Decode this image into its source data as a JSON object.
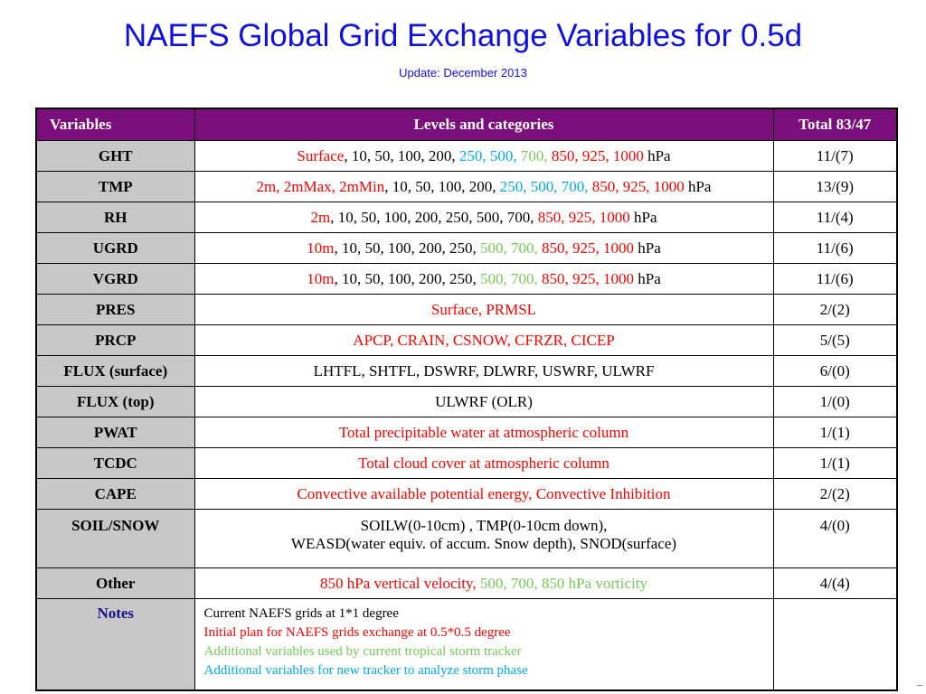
{
  "title": "NAEFS Global Grid Exchange Variables for 0.5d",
  "subtitle": "Update: December 2013",
  "headers": {
    "variables": "Variables",
    "levels": "Levels and categories",
    "total": "Total  83/47"
  },
  "rows": [
    {
      "var": "GHT",
      "segments": [
        {
          "t": "Surface",
          "c": "red"
        },
        {
          "t": ", 10, 50, 100, 200, ",
          "c": "blk"
        },
        {
          "t": "250, 500, ",
          "c": "cyan"
        },
        {
          "t": "700, ",
          "c": "green"
        },
        {
          "t": "850, 925, 1000",
          "c": "red"
        },
        {
          "t": " hPa",
          "c": "blk"
        }
      ],
      "total": "11/(7)"
    },
    {
      "var": "TMP",
      "segments": [
        {
          "t": "2m, 2mMax, 2mMin",
          "c": "red"
        },
        {
          "t": ", 10, 50, 100, 200, ",
          "c": "blk"
        },
        {
          "t": "250, 500, 700, ",
          "c": "cyan"
        },
        {
          "t": "850, 925, 1000",
          "c": "red"
        },
        {
          "t": " hPa",
          "c": "blk"
        }
      ],
      "total": "13/(9)"
    },
    {
      "var": "RH",
      "segments": [
        {
          "t": "2m",
          "c": "red"
        },
        {
          "t": ", 10, 50, 100, 200, 250, 500, 700, ",
          "c": "blk"
        },
        {
          "t": "850, 925, 1000",
          "c": "red"
        },
        {
          "t": " hPa",
          "c": "blk"
        }
      ],
      "total": "11/(4)"
    },
    {
      "var": "UGRD",
      "segments": [
        {
          "t": "10m",
          "c": "red"
        },
        {
          "t": ", 10, 50, 100, 200, 250, ",
          "c": "blk"
        },
        {
          "t": "500, 700, ",
          "c": "green"
        },
        {
          "t": "850, 925, 1000",
          "c": "red"
        },
        {
          "t": " hPa",
          "c": "blk"
        }
      ],
      "total": "11/(6)"
    },
    {
      "var": "VGRD",
      "segments": [
        {
          "t": "10m",
          "c": "red"
        },
        {
          "t": ", 10, 50, 100, 200, 250, ",
          "c": "blk"
        },
        {
          "t": "500, 700, ",
          "c": "green"
        },
        {
          "t": "850, 925, 1000",
          "c": "red"
        },
        {
          "t": " hPa",
          "c": "blk"
        }
      ],
      "total": "11/(6)"
    },
    {
      "var": "PRES",
      "segments": [
        {
          "t": "Surface, PRMSL",
          "c": "red"
        }
      ],
      "total": "2/(2)"
    },
    {
      "var": "PRCP",
      "segments": [
        {
          "t": "APCP, CRAIN, CSNOW, CFRZR, CICEP",
          "c": "red"
        }
      ],
      "total": "5/(5)"
    },
    {
      "var": "FLUX (surface)",
      "segments": [
        {
          "t": "LHTFL, SHTFL, DSWRF, DLWRF, USWRF, ULWRF",
          "c": "blk"
        }
      ],
      "total": "6/(0)"
    },
    {
      "var": "FLUX (top)",
      "segments": [
        {
          "t": "ULWRF (OLR)",
          "c": "blk"
        }
      ],
      "total": "1/(0)"
    },
    {
      "var": "PWAT",
      "segments": [
        {
          "t": "Total precipitable water at atmospheric column",
          "c": "red"
        }
      ],
      "total": "1/(1)"
    },
    {
      "var": "TCDC",
      "segments": [
        {
          "t": "Total cloud cover at atmospheric column",
          "c": "red"
        }
      ],
      "total": "1/(1)"
    },
    {
      "var": "CAPE",
      "segments": [
        {
          "t": "Convective available potential energy, Convective Inhibition",
          "c": "red"
        }
      ],
      "total": "2/(2)"
    }
  ],
  "soil_snow": {
    "var": "SOIL/SNOW",
    "line1": "SOILW(0-10cm) , TMP(0-10cm down),",
    "line2": "WEASD(water equiv. of accum. Snow depth),  SNOD(surface)",
    "total": "4/(0)"
  },
  "other": {
    "var": "Other",
    "segments": [
      {
        "t": "850 hPa  vertical velocity, ",
        "c": "red"
      },
      {
        "t": "500, 700, 850 hPa vorticity",
        "c": "green"
      }
    ],
    "total": "4/(4)"
  },
  "notes": {
    "var": "Notes",
    "lines": [
      {
        "t": "Current NAEFS grids at 1*1 degree",
        "c": "blk"
      },
      {
        "t": "Initial plan for NAEFS grids exchange at 0.5*0.5 degree",
        "c": "red"
      },
      {
        "t": "Additional variables used by current tropical storm tracker",
        "c": "green"
      },
      {
        "t": "Additional variables for new tracker to analyze storm phase",
        "c": "cyan"
      }
    ]
  },
  "colors": {
    "header_bg": "#7b0f7b",
    "var_bg": "#c8c8c8",
    "red": "#ff0000",
    "cyan": "#00aae8",
    "green": "#74c95a",
    "title_blue": "#1010e0",
    "notes_navy": "#14148c"
  }
}
